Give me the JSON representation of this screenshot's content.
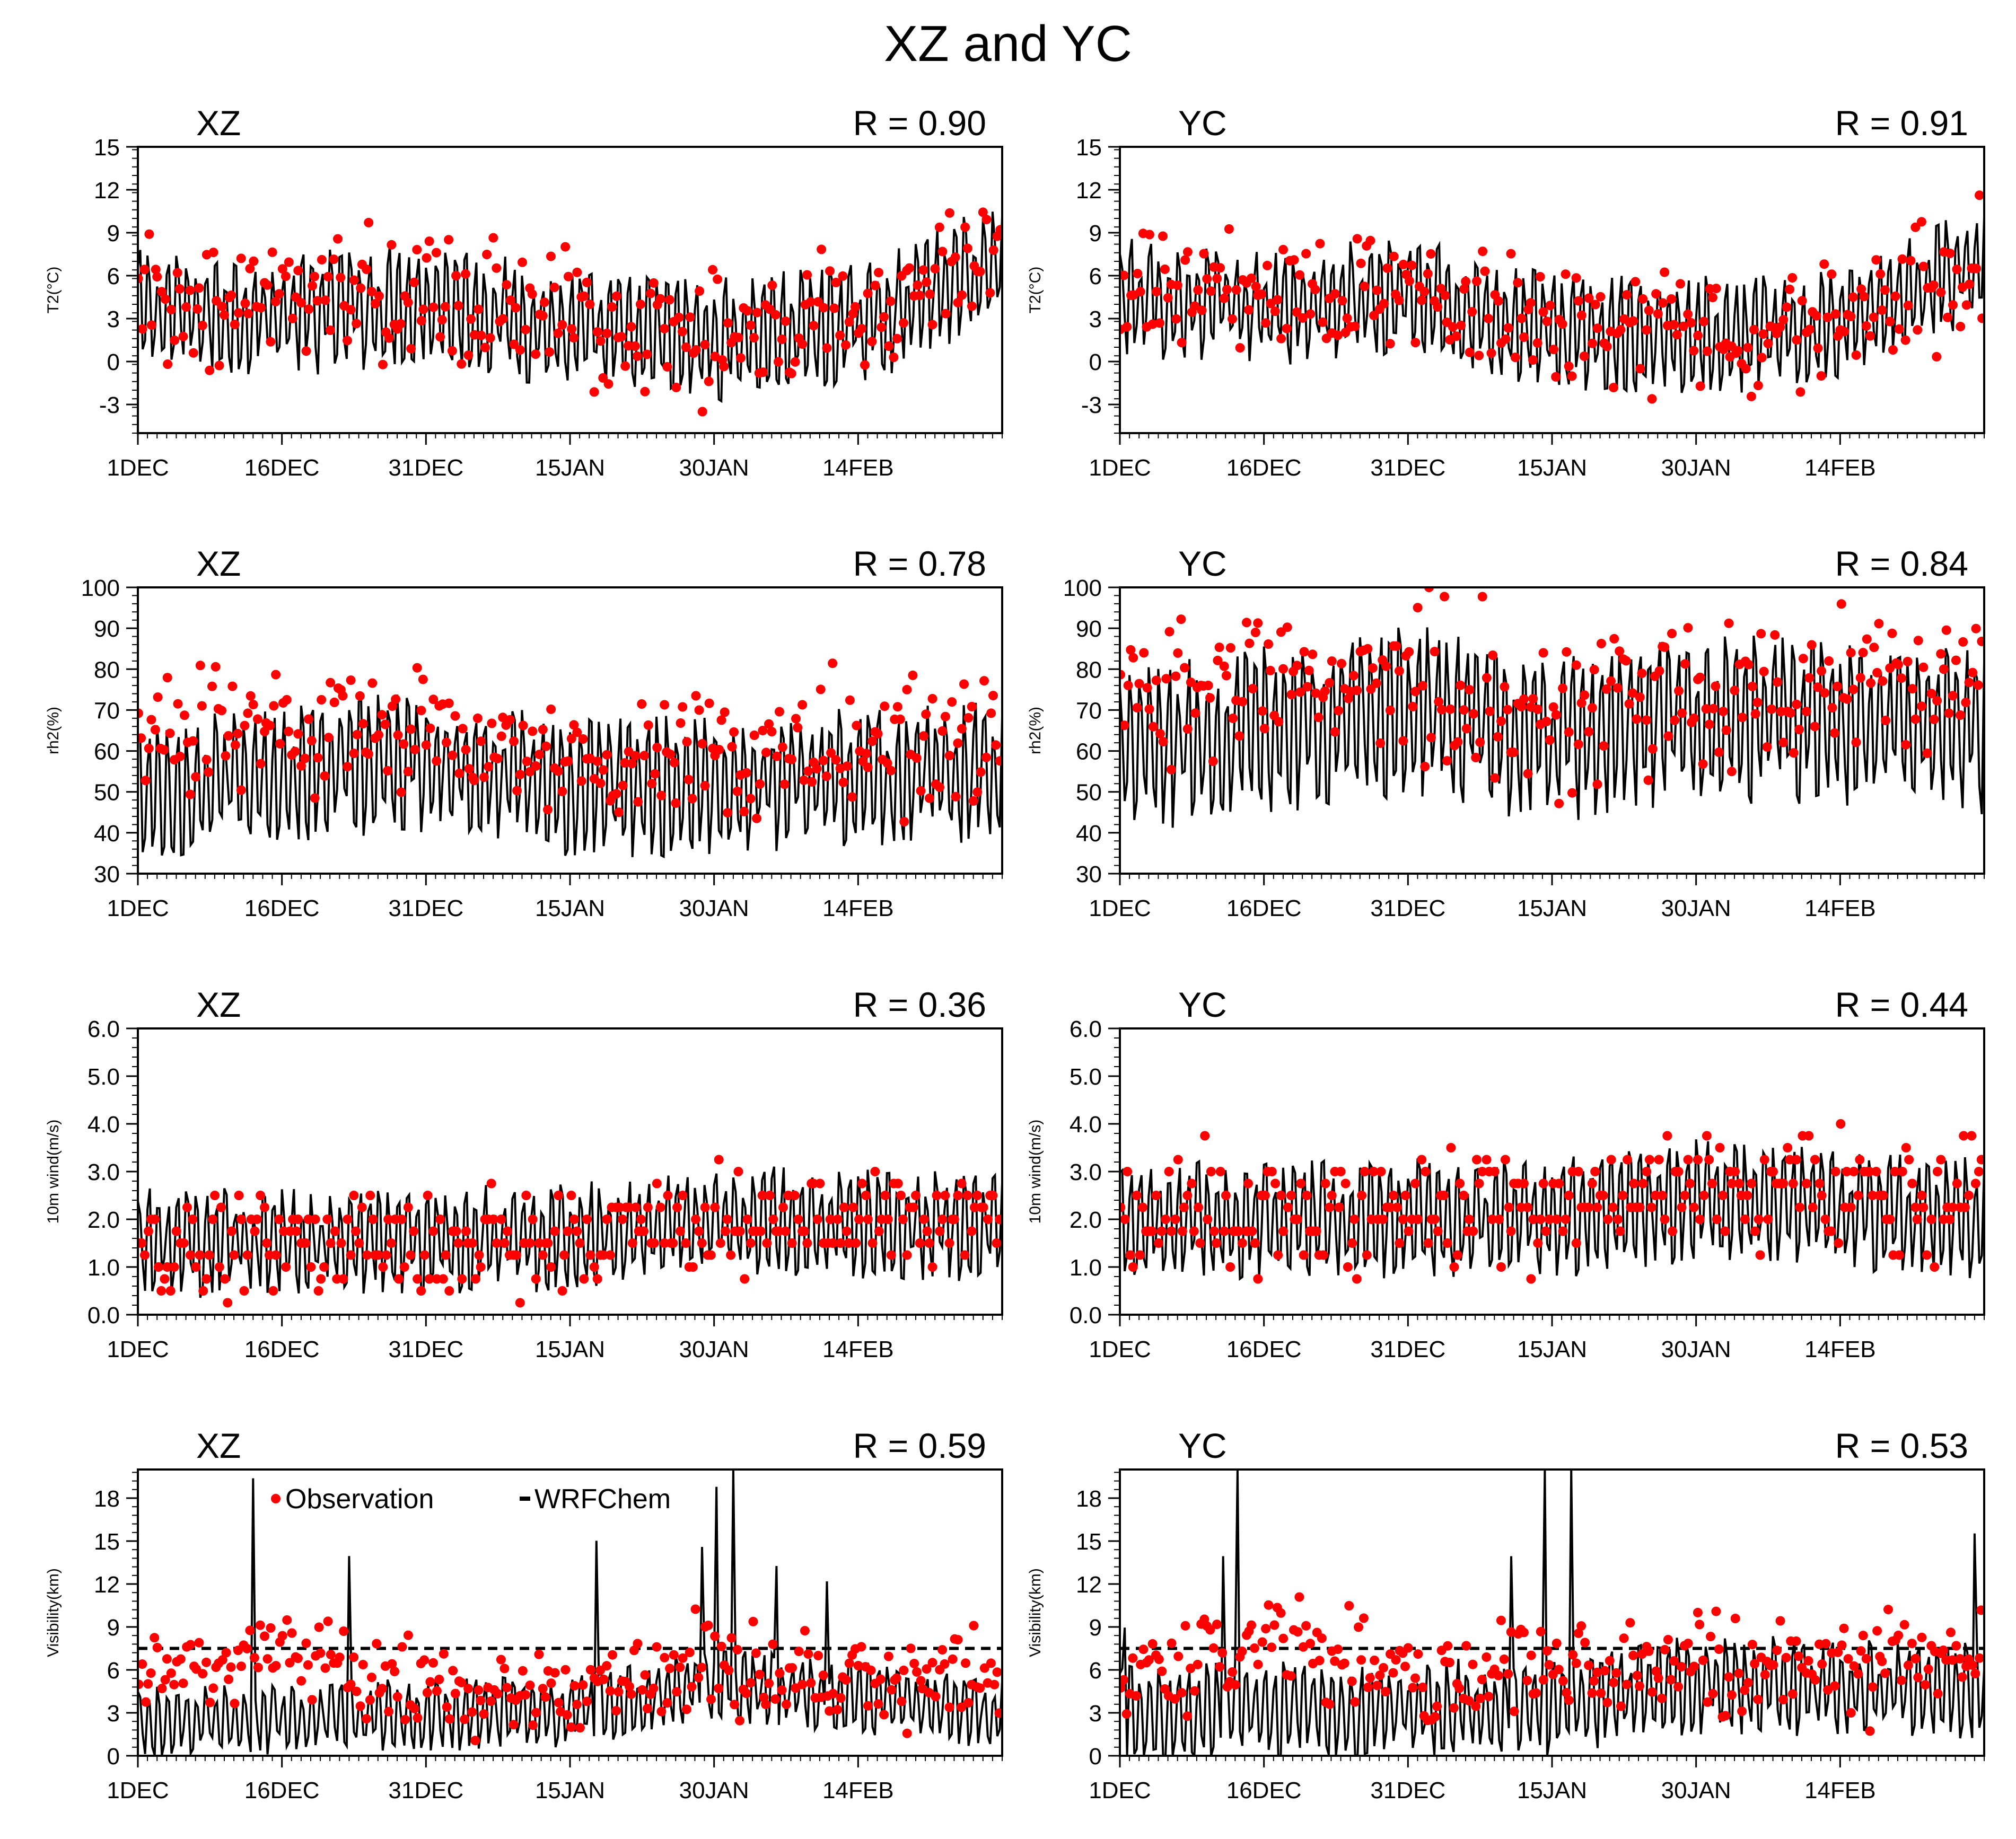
{
  "title": "XZ and YC",
  "colors": {
    "observation": "#ff0000",
    "model": "#000000",
    "axis": "#000000"
  },
  "legend": {
    "observation": "Observation",
    "model": "WRFChem"
  },
  "chart_data": [
    {
      "type": "line",
      "station": "XZ",
      "r_label": "R = 0.90",
      "ylabel": "T2(°C)",
      "x_ticks": [
        "1DEC",
        "16DEC",
        "31DEC",
        "15JAN",
        "30JAN",
        "14FEB"
      ],
      "y_ticks": [
        "-3",
        "0",
        "3",
        "6",
        "9",
        "12",
        "15"
      ],
      "ylim": [
        -5,
        15
      ],
      "xlim": [
        "1DEC",
        "29FEB"
      ],
      "series": [
        {
          "kind": "model",
          "mean": 3.5,
          "amp": 3.8,
          "trend": [
            [
              0,
              3.5
            ],
            [
              15,
              3.2
            ],
            [
              31,
              4.2
            ],
            [
              45,
              2.0
            ],
            [
              60,
              1.5
            ],
            [
              75,
              2.5
            ],
            [
              90,
              7.0
            ]
          ]
        },
        {
          "kind": "observation",
          "mean": 3.8,
          "spread": 3.4,
          "trend": [
            [
              0,
              4.0
            ],
            [
              31,
              4.5
            ],
            [
              45,
              2.8
            ],
            [
              60,
              2.5
            ],
            [
              75,
              3.0
            ],
            [
              90,
              7.5
            ]
          ]
        }
      ]
    },
    {
      "type": "line",
      "station": "YC",
      "r_label": "R = 0.91",
      "ylabel": "T2(°C)",
      "x_ticks": [
        "1DEC",
        "16DEC",
        "31DEC",
        "15JAN",
        "30JAN",
        "14FEB"
      ],
      "y_ticks": [
        "-3",
        "0",
        "3",
        "6",
        "9",
        "12",
        "15"
      ],
      "ylim": [
        -5,
        15
      ],
      "xlim": [
        "1DEC",
        "29FEB"
      ],
      "series": [
        {
          "kind": "model",
          "mean": 4.0,
          "amp": 3.6,
          "trend": [
            [
              0,
              4.5
            ],
            [
              15,
              3.8
            ],
            [
              31,
              4.5
            ],
            [
              45,
              2.0
            ],
            [
              60,
              2.0
            ],
            [
              72,
              1.8
            ],
            [
              90,
              7.0
            ]
          ]
        },
        {
          "kind": "observation",
          "mean": 4.2,
          "spread": 3.2,
          "trend": [
            [
              0,
              5.0
            ],
            [
              31,
              4.8
            ],
            [
              45,
              2.5
            ],
            [
              60,
              3.0
            ],
            [
              72,
              2.0
            ],
            [
              90,
              7.0
            ]
          ]
        }
      ]
    },
    {
      "type": "line",
      "station": "XZ",
      "r_label": "R = 0.78",
      "ylabel": "rh2(%)",
      "x_ticks": [
        "1DEC",
        "16DEC",
        "31DEC",
        "15JAN",
        "30JAN",
        "14FEB"
      ],
      "y_ticks": [
        "30",
        "40",
        "50",
        "60",
        "70",
        "80",
        "90",
        "100"
      ],
      "ylim": [
        30,
        100
      ],
      "xlim": [
        "1DEC",
        "29FEB"
      ],
      "series": [
        {
          "kind": "model",
          "mean": 52,
          "amp": 15,
          "trend": [
            [
              0,
              50
            ],
            [
              31,
              58
            ],
            [
              45,
              50
            ],
            [
              60,
              52
            ],
            [
              90,
              55
            ]
          ]
        },
        {
          "kind": "observation",
          "mean": 60,
          "spread": 12,
          "trend": [
            [
              0,
              65
            ],
            [
              31,
              65
            ],
            [
              45,
              58
            ],
            [
              60,
              60
            ],
            [
              90,
              62
            ]
          ]
        }
      ]
    },
    {
      "type": "line",
      "station": "YC",
      "r_label": "R = 0.84",
      "ylabel": "rh2(%)",
      "x_ticks": [
        "1DEC",
        "16DEC",
        "31DEC",
        "15JAN",
        "30JAN",
        "14FEB"
      ],
      "y_ticks": [
        "30",
        "40",
        "50",
        "60",
        "70",
        "80",
        "90",
        "100"
      ],
      "ylim": [
        30,
        100
      ],
      "xlim": [
        "1DEC",
        "29FEB"
      ],
      "series": [
        {
          "kind": "model",
          "mean": 62,
          "amp": 18,
          "trend": [
            [
              0,
              60
            ],
            [
              31,
              70
            ],
            [
              45,
              62
            ],
            [
              60,
              68
            ],
            [
              90,
              65
            ]
          ]
        },
        {
          "kind": "observation",
          "mean": 72,
          "spread": 14,
          "trend": [
            [
              0,
              75
            ],
            [
              31,
              78
            ],
            [
              45,
              70
            ],
            [
              60,
              75
            ],
            [
              90,
              80
            ]
          ]
        }
      ]
    },
    {
      "type": "line",
      "station": "XZ",
      "r_label": "R = 0.36",
      "ylabel": "10m wind(m/s)",
      "x_ticks": [
        "1DEC",
        "16DEC",
        "31DEC",
        "15JAN",
        "30JAN",
        "14FEB"
      ],
      "y_ticks": [
        "0.0",
        "1.0",
        "2.0",
        "3.0",
        "4.0",
        "5.0",
        "6.0"
      ],
      "ylim": [
        0,
        6
      ],
      "xlim": [
        "1DEC",
        "29FEB"
      ],
      "series": [
        {
          "kind": "model",
          "mean": 1.6,
          "amp": 1.0,
          "trend": [
            [
              0,
              1.5
            ],
            [
              45,
              1.6
            ],
            [
              60,
              2.0
            ],
            [
              90,
              1.8
            ]
          ]
        },
        {
          "kind": "observation",
          "mean": 1.7,
          "spread": 0.8,
          "trend": [
            [
              0,
              1.4
            ],
            [
              45,
              1.6
            ],
            [
              60,
              2.0
            ],
            [
              90,
              2.0
            ]
          ]
        }
      ]
    },
    {
      "type": "line",
      "station": "YC",
      "r_label": "R = 0.44",
      "ylabel": "10m wind(m/s)",
      "x_ticks": [
        "1DEC",
        "16DEC",
        "31DEC",
        "15JAN",
        "30JAN",
        "14FEB"
      ],
      "y_ticks": [
        "0.0",
        "1.0",
        "2.0",
        "3.0",
        "4.0",
        "5.0",
        "6.0"
      ],
      "ylim": [
        0,
        6
      ],
      "xlim": [
        "1DEC",
        "29FEB"
      ],
      "series": [
        {
          "kind": "model",
          "mean": 1.9,
          "amp": 1.1,
          "trend": [
            [
              0,
              2.0
            ],
            [
              45,
              2.0
            ],
            [
              60,
              2.4
            ],
            [
              90,
              2.0
            ]
          ]
        },
        {
          "kind": "observation",
          "mean": 2.3,
          "spread": 0.9,
          "trend": [
            [
              0,
              2.2
            ],
            [
              45,
              2.3
            ],
            [
              60,
              2.6
            ],
            [
              90,
              2.5
            ]
          ]
        }
      ]
    },
    {
      "type": "line",
      "station": "XZ",
      "r_label": "R = 0.59",
      "ylabel": "Visibility(km)",
      "x_ticks": [
        "1DEC",
        "16DEC",
        "31DEC",
        "15JAN",
        "30JAN",
        "14FEB"
      ],
      "y_ticks": [
        "0",
        "3",
        "6",
        "9",
        "12",
        "15",
        "18"
      ],
      "ylim": [
        0,
        20
      ],
      "xlim": [
        "1DEC",
        "29FEB"
      ],
      "reference_line": 7.5,
      "has_legend": true,
      "series": [
        {
          "kind": "model",
          "mean": 2.8,
          "amp": 2.2,
          "trend": [
            [
              0,
              2.5
            ],
            [
              45,
              3.0
            ],
            [
              60,
              5.0
            ],
            [
              90,
              3.0
            ]
          ]
        },
        {
          "kind": "observation",
          "mean": 5.2,
          "spread": 2.4,
          "trend": [
            [
              0,
              5.0
            ],
            [
              15,
              7.5
            ],
            [
              31,
              4.0
            ],
            [
              45,
              4.5
            ],
            [
              60,
              6.0
            ],
            [
              90,
              5.0
            ]
          ]
        }
      ]
    },
    {
      "type": "line",
      "station": "YC",
      "r_label": "R = 0.53",
      "ylabel": "Visibility(km)",
      "x_ticks": [
        "1DEC",
        "16DEC",
        "31DEC",
        "15JAN",
        "30JAN",
        "14FEB"
      ],
      "y_ticks": [
        "0",
        "3",
        "6",
        "9",
        "12",
        "15",
        "18"
      ],
      "ylim": [
        0,
        20
      ],
      "xlim": [
        "1DEC",
        "29FEB"
      ],
      "reference_line": 7.5,
      "series": [
        {
          "kind": "model",
          "mean": 3.5,
          "amp": 3.0,
          "trend": [
            [
              0,
              3.0
            ],
            [
              45,
              3.5
            ],
            [
              60,
              5.0
            ],
            [
              90,
              4.5
            ]
          ]
        },
        {
          "kind": "observation",
          "mean": 5.5,
          "spread": 2.8,
          "trend": [
            [
              0,
              5.0
            ],
            [
              15,
              8.0
            ],
            [
              31,
              5.0
            ],
            [
              45,
              6.0
            ],
            [
              60,
              6.5
            ],
            [
              90,
              6.5
            ]
          ]
        }
      ]
    }
  ]
}
